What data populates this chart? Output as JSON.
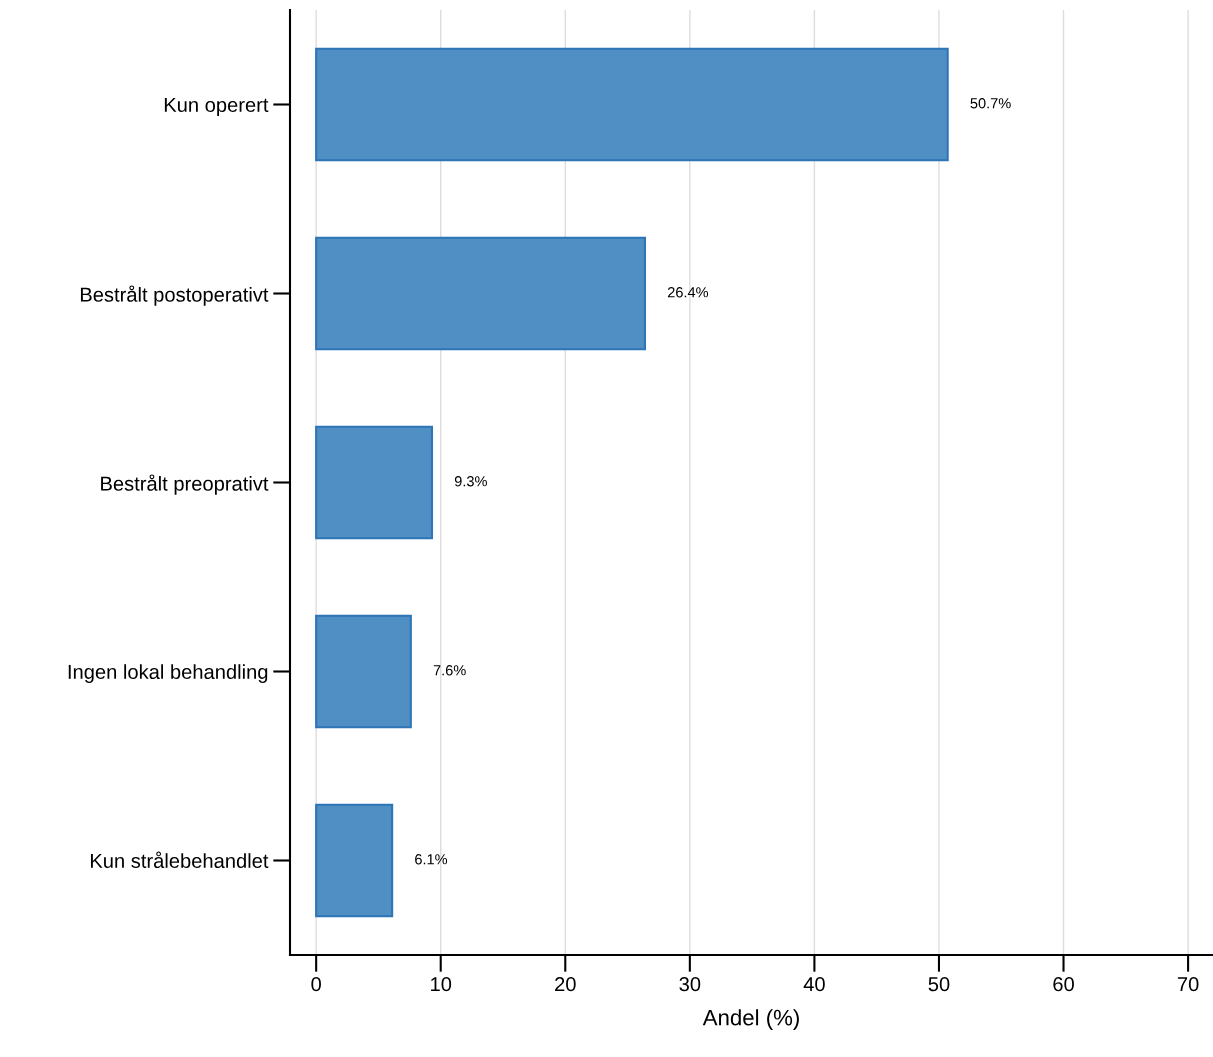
{
  "chart_data": {
    "type": "bar",
    "orientation": "horizontal",
    "xlabel": "Andel (%)",
    "categories": [
      "Kun operert",
      "Bestrålt postoperativt",
      "Bestrålt preoprativt",
      "Ingen lokal behandling",
      "Kun strålebehandlet"
    ],
    "values": [
      50.7,
      26.4,
      9.3,
      7.6,
      6.1
    ],
    "value_labels": [
      "50.7%",
      "26.4%",
      "9.3%",
      "7.6%",
      "6.1%"
    ],
    "color": "#4f8fc4",
    "xlim": [
      -2.1,
      72
    ],
    "xticks": [
      0,
      10,
      20,
      30,
      40,
      50,
      60,
      70
    ],
    "grid": "x",
    "legend": false
  }
}
